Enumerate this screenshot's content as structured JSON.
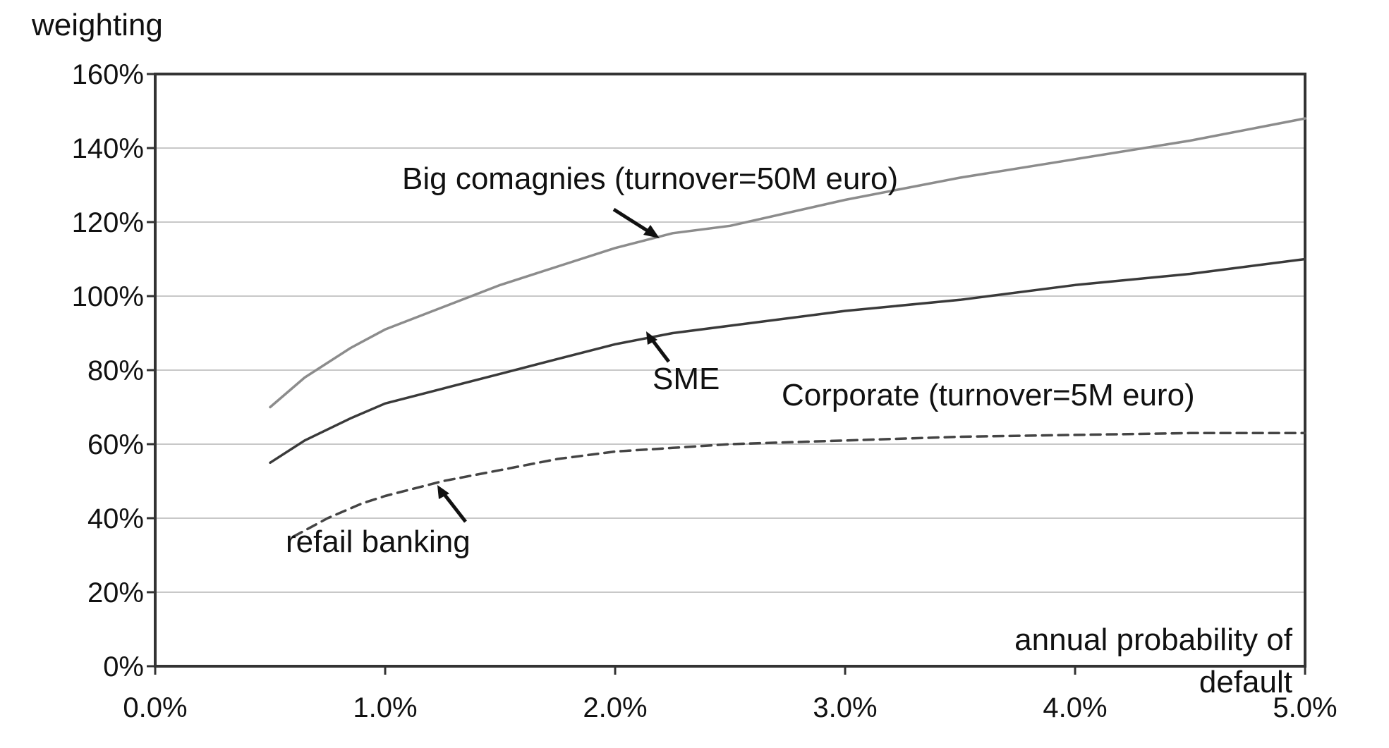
{
  "chart_data": {
    "type": "line",
    "title": "",
    "ylabel": "weighting",
    "xlabel": "annual probability of default",
    "xlim": [
      0,
      5
    ],
    "ylim": [
      0,
      160
    ],
    "x_ticks": [
      "0.0%",
      "1.0%",
      "2.0%",
      "3.0%",
      "4.0%",
      "5.0%"
    ],
    "y_ticks": [
      "0%",
      "20%",
      "40%",
      "60%",
      "80%",
      "100%",
      "120%",
      "140%",
      "160%"
    ],
    "grid": true,
    "series": [
      {
        "name": "Big comagnies (turnover=50M euro)",
        "style": "solid",
        "color": "#8c8c8c",
        "x": [
          0.5,
          0.65,
          0.85,
          1.0,
          1.25,
          1.5,
          1.75,
          2.0,
          2.25,
          2.5,
          3.0,
          3.5,
          4.0,
          4.5,
          5.0
        ],
        "y": [
          70,
          78,
          86,
          91,
          97,
          103,
          108,
          113,
          117,
          119,
          126,
          132,
          137,
          142,
          148
        ]
      },
      {
        "name": "SME",
        "style": "solid",
        "color": "#3a3a3a",
        "x": [
          0.5,
          0.65,
          0.85,
          1.0,
          1.25,
          1.5,
          1.75,
          2.0,
          2.25,
          2.5,
          3.0,
          3.5,
          4.0,
          4.5,
          5.0
        ],
        "y": [
          55,
          61,
          67,
          71,
          75,
          79,
          83,
          87,
          90,
          92,
          96,
          99,
          103,
          106,
          110
        ]
      },
      {
        "name": "Corporate (turnover=5M euro)",
        "style": "dashed",
        "color": "#444444",
        "x": [
          0.6,
          0.75,
          0.9,
          1.0,
          1.25,
          1.5,
          1.75,
          2.0,
          2.25,
          2.5,
          3.0,
          3.5,
          4.0,
          4.5,
          5.0
        ],
        "y": [
          35,
          40,
          44,
          46,
          50,
          53,
          56,
          58,
          59,
          60,
          61,
          62,
          62.5,
          63,
          63
        ]
      }
    ],
    "annotations": [
      {
        "text": "Big comagnies (turnover=50M euro)",
        "series": 0
      },
      {
        "text": "SME",
        "series": 1
      },
      {
        "text": "Corporate (turnover=5M euro)",
        "series": 2
      },
      {
        "text": "refail banking",
        "series": 2
      }
    ]
  }
}
